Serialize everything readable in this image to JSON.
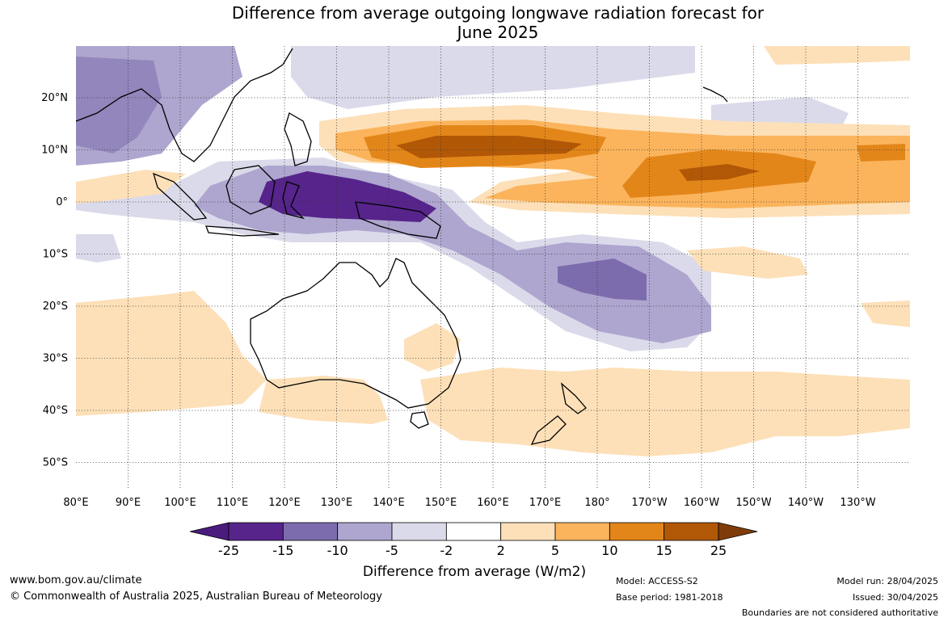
{
  "title_line1": "Difference from average outgoing longwave radiation forecast for",
  "title_line2": "June 2025",
  "lat_labels": [
    "20°N",
    "10°N",
    "0°",
    "10°S",
    "20°S",
    "30°S",
    "40°S",
    "50°S"
  ],
  "lon_labels": [
    "80°E",
    "90°E",
    "100°E",
    "110°E",
    "120°E",
    "130°E",
    "140°E",
    "150°E",
    "160°E",
    "170°E",
    "180°",
    "170°W",
    "160°W",
    "150°W",
    "140°W",
    "130°W"
  ],
  "colorbar": {
    "title": "Difference from average (W/m2)",
    "ticks": [
      "-25",
      "-15",
      "-10",
      "-5",
      "-2",
      "2",
      "5",
      "10",
      "15",
      "25"
    ],
    "colors": [
      "#4b1c7d",
      "#56248b",
      "#7d6cad",
      "#aea6cf",
      "#dadaea",
      "#ffffff",
      "#fde0b8",
      "#fbb45c",
      "#e3861a",
      "#b15807",
      "#7f3c0a"
    ]
  },
  "footer": {
    "website": "www.bom.gov.au/climate",
    "copyright": "© Commonwealth of Australia 2025, Australian Bureau of Meteorology",
    "model": "Model: ACCESS-S2",
    "base_period": "Base period: 1981-2018",
    "model_run": "Model run: 28/04/2025",
    "issued": "Issued: 30/04/2025",
    "disclaimer": "Boundaries are not considered authoritative"
  }
}
